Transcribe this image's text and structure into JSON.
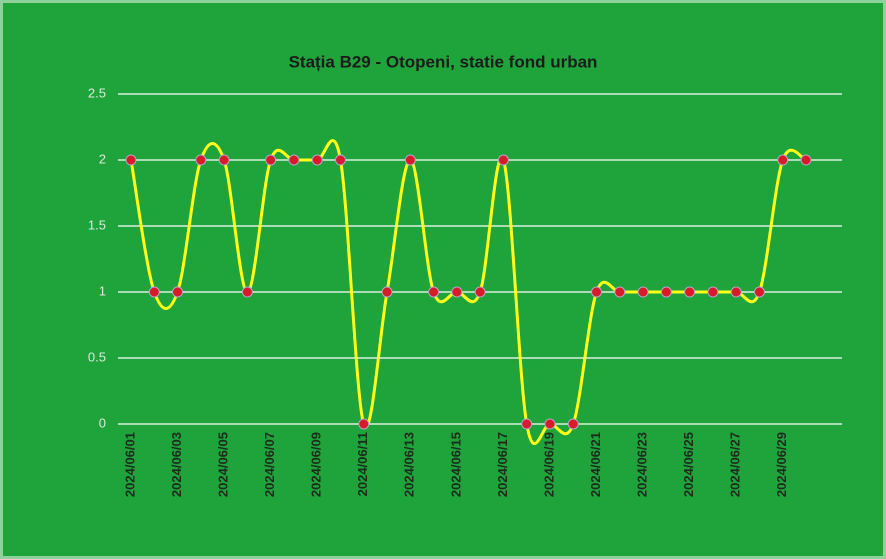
{
  "chart_data": {
    "type": "line",
    "title": "Stația B29 - Otopeni, statie fond urban",
    "categories": [
      "2024/06/01",
      null,
      "2024/06/03",
      null,
      "2024/06/05",
      null,
      "2024/06/07",
      null,
      "2024/06/09",
      null,
      "2024/06/11",
      null,
      "2024/06/13",
      null,
      "2024/06/15",
      null,
      "2024/06/17",
      null,
      "2024/06/19",
      null,
      "2024/06/21",
      null,
      "2024/06/23",
      null,
      "2024/06/25",
      null,
      "2024/06/27",
      null,
      "2024/06/29",
      null
    ],
    "series": [
      {
        "color": "#ffff1a",
        "marker_color": "#d81b2b",
        "values": [
          2,
          1,
          1,
          2,
          2,
          1,
          2,
          2,
          2,
          2,
          0,
          1,
          2,
          1,
          1,
          1,
          2,
          0,
          0,
          0,
          1,
          1,
          1,
          1,
          1,
          1,
          1,
          1,
          2,
          2
        ]
      }
    ],
    "ylim": [
      0,
      2.5
    ],
    "yticks": [
      0,
      0.5,
      1,
      1.5,
      2,
      2.5
    ],
    "grid": true,
    "smooth": true
  }
}
